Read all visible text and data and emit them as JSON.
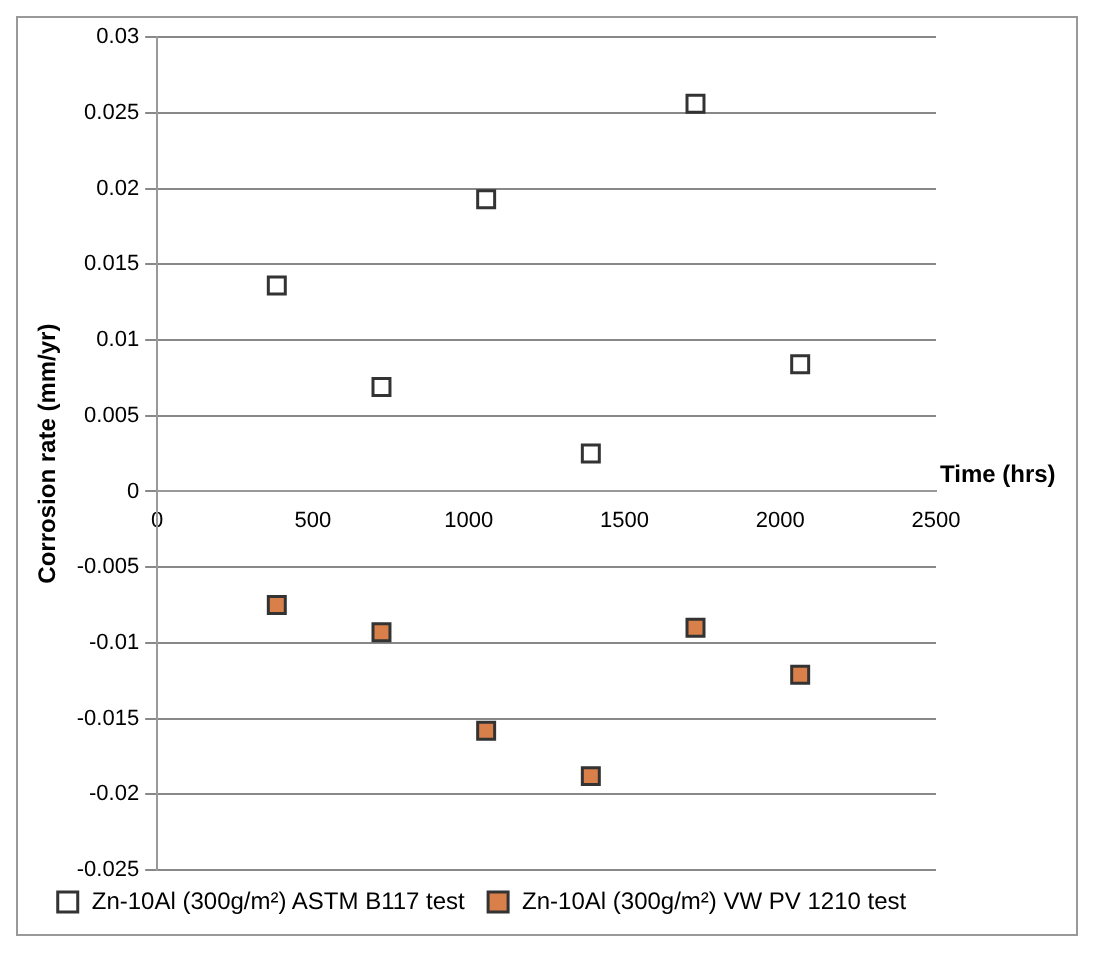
{
  "chart_data": {
    "type": "scatter",
    "xlabel": "Time (hrs)",
    "ylabel": "Corrosion rate (mm/yr)",
    "x": [
      384,
      720,
      1056,
      1392,
      1728,
      2064
    ],
    "series": [
      {
        "name": "Zn-10Al (300g/m²) ASTM B117 test",
        "color": "#ffffff",
        "values": [
          0.0136,
          0.0069,
          0.0193,
          0.0025,
          0.0256,
          0.0084
        ]
      },
      {
        "name": "Zn-10Al (300g/m²) VW PV 1210 test",
        "color": "#d9804a",
        "values": [
          -0.0075,
          -0.0093,
          -0.0158,
          -0.0188,
          -0.009,
          -0.0121
        ]
      }
    ],
    "xlim": [
      0,
      2500
    ],
    "xticks": [
      0,
      500,
      1000,
      1500,
      2000,
      2500
    ],
    "ylim": [
      -0.025,
      0.03
    ],
    "yticks": [
      -0.025,
      -0.02,
      -0.015,
      -0.01,
      -0.005,
      0,
      0.005,
      0.01,
      0.015,
      0.02,
      0.025,
      0.03
    ],
    "grid": "y",
    "legend": "bottom",
    "marker": "square"
  }
}
